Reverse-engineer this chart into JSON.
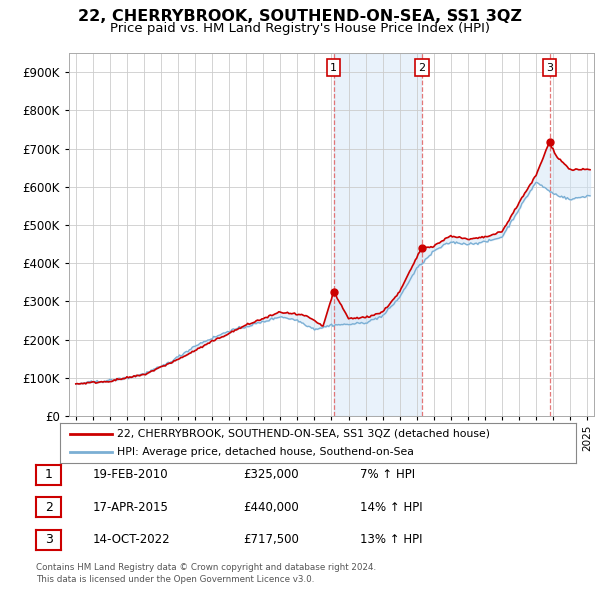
{
  "title": "22, CHERRYBROOK, SOUTHEND-ON-SEA, SS1 3QZ",
  "subtitle": "Price paid vs. HM Land Registry's House Price Index (HPI)",
  "title_fontsize": 11.5,
  "subtitle_fontsize": 9.5,
  "legend_line1": "22, CHERRYBROOK, SOUTHEND-ON-SEA, SS1 3QZ (detached house)",
  "legend_line2": "HPI: Average price, detached house, Southend-on-Sea",
  "footer1": "Contains HM Land Registry data © Crown copyright and database right 2024.",
  "footer2": "This data is licensed under the Open Government Licence v3.0.",
  "transactions": [
    {
      "label": "1",
      "date": "19-FEB-2010",
      "price": "£325,000",
      "hpi": "7% ↑ HPI",
      "year": 2010.12
    },
    {
      "label": "2",
      "date": "17-APR-2015",
      "price": "£440,000",
      "hpi": "14% ↑ HPI",
      "year": 2015.29
    },
    {
      "label": "3",
      "date": "14-OCT-2022",
      "price": "£717,500",
      "hpi": "13% ↑ HPI",
      "year": 2022.79
    }
  ],
  "transaction_values": [
    325000,
    440000,
    717500
  ],
  "hpi_color": "#7bafd4",
  "price_color": "#cc0000",
  "shade_color": "#d0e4f7",
  "dashed_color": "#e06060",
  "background_color": "#ffffff",
  "grid_color": "#cccccc",
  "ylim": [
    0,
    950000
  ],
  "yticks": [
    0,
    100000,
    200000,
    300000,
    400000,
    500000,
    600000,
    700000,
    800000,
    900000
  ],
  "xlim_start": 1994.6,
  "xlim_end": 2025.4
}
